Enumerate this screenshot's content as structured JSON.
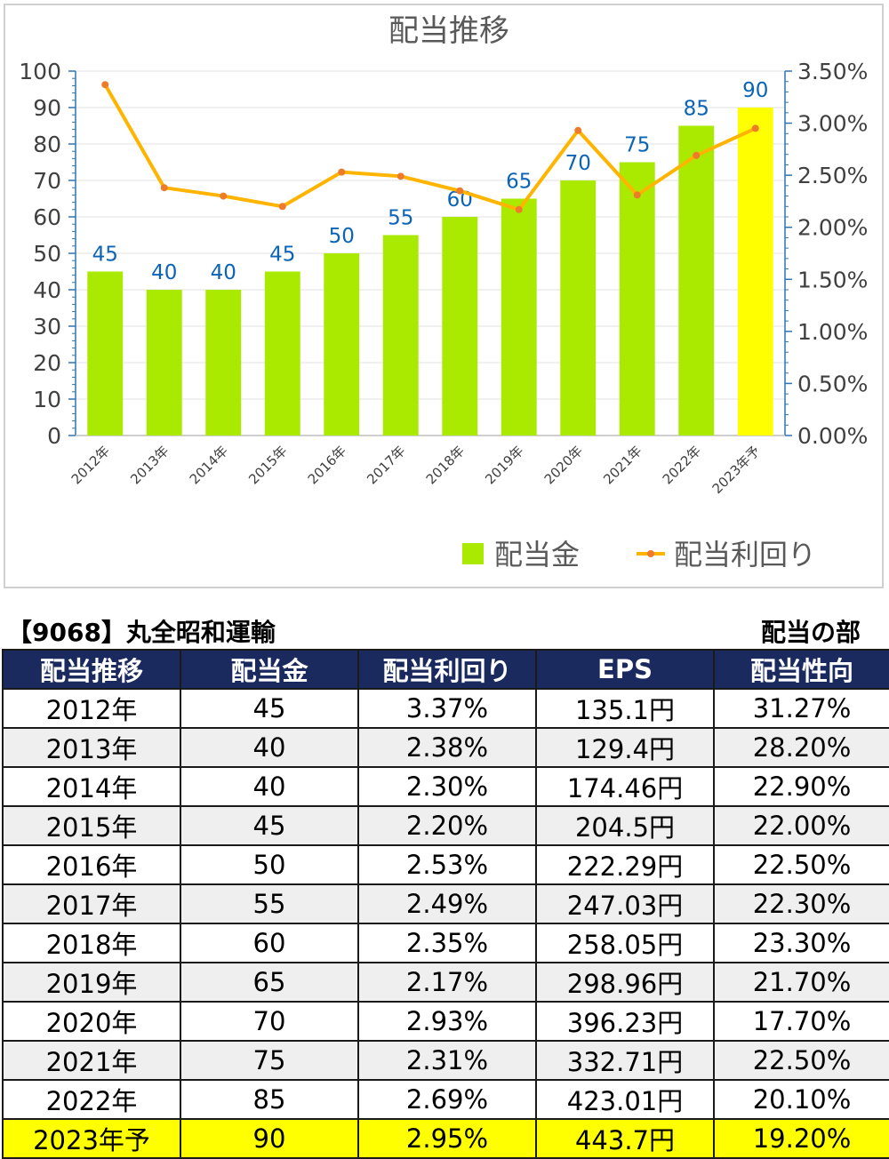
{
  "stock_title": "【9068】丸全昭和運輸",
  "section_label": "配当の部",
  "colors": {
    "bar": "#aaea00",
    "bar_forecast": "#ffff00",
    "line": "#ffb400",
    "marker": "#ee7a2c",
    "data_label": "#0b64b5",
    "header_bg": "#1b2a5e",
    "forecast_row": "#ffff00"
  },
  "chart_data": {
    "type": "bar",
    "title": "配当推移",
    "categories": [
      "2012年",
      "2013年",
      "2014年",
      "2015年",
      "2016年",
      "2017年",
      "2018年",
      "2019年",
      "2020年",
      "2021年",
      "2022年",
      "2023年予"
    ],
    "series": [
      {
        "name": "配当金",
        "type": "bar",
        "axis": "left",
        "values": [
          45,
          40,
          40,
          45,
          50,
          55,
          60,
          65,
          70,
          75,
          85,
          90
        ]
      },
      {
        "name": "配当利回り",
        "type": "line",
        "axis": "right",
        "values": [
          3.37,
          2.38,
          2.3,
          2.2,
          2.53,
          2.49,
          2.35,
          2.17,
          2.93,
          2.31,
          2.69,
          2.95
        ]
      }
    ],
    "left_axis": {
      "ylim": [
        0,
        100
      ],
      "ticks": [
        "0",
        "10",
        "20",
        "30",
        "40",
        "50",
        "60",
        "70",
        "80",
        "90",
        "100"
      ]
    },
    "right_axis": {
      "ylim": [
        0,
        3.5
      ],
      "ticks": [
        "0.00%",
        "0.50%",
        "1.00%",
        "1.50%",
        "2.00%",
        "2.50%",
        "3.00%",
        "3.50%"
      ]
    },
    "grid": true,
    "legend_position": "bottom-right",
    "data_labels_on_bars": true
  },
  "table": {
    "headers": [
      "配当推移",
      "配当金",
      "配当利回り",
      "EPS",
      "配当性向"
    ],
    "rows": [
      [
        "2012年",
        "45",
        "3.37%",
        "135.1円",
        "31.27%"
      ],
      [
        "2013年",
        "40",
        "2.38%",
        "129.4円",
        "28.20%"
      ],
      [
        "2014年",
        "40",
        "2.30%",
        "174.46円",
        "22.90%"
      ],
      [
        "2015年",
        "45",
        "2.20%",
        "204.5円",
        "22.00%"
      ],
      [
        "2016年",
        "50",
        "2.53%",
        "222.29円",
        "22.50%"
      ],
      [
        "2017年",
        "55",
        "2.49%",
        "247.03円",
        "22.30%"
      ],
      [
        "2018年",
        "60",
        "2.35%",
        "258.05円",
        "23.30%"
      ],
      [
        "2019年",
        "65",
        "2.17%",
        "298.96円",
        "21.70%"
      ],
      [
        "2020年",
        "70",
        "2.93%",
        "396.23円",
        "17.70%"
      ],
      [
        "2021年",
        "75",
        "2.31%",
        "332.71円",
        "22.50%"
      ],
      [
        "2022年",
        "85",
        "2.69%",
        "423.01円",
        "20.10%"
      ],
      [
        "2023年予",
        "90",
        "2.95%",
        "443.7円",
        "19.20%"
      ]
    ]
  }
}
